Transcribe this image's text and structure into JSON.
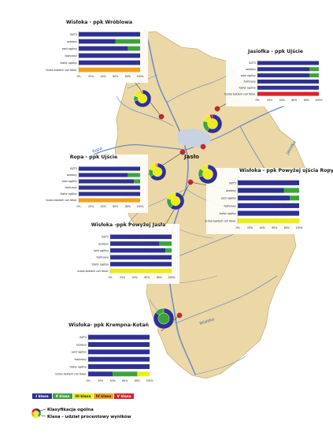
{
  "colors": {
    "class_I": "#2e3192",
    "class_II": "#3aa53a",
    "class_III": "#ecec1c",
    "class_IV": "#f2a21d",
    "class_V": "#d7242a",
    "land": "#ecd8a6",
    "river": "#6f8fc4",
    "reservoir": "#c8d2e2",
    "point": "#d7242a"
  },
  "town": "Jasło",
  "rivers": {
    "ropa": "Ropa",
    "jasiolka": "Jasiołka",
    "wisloka": "Wisłoka"
  },
  "parameter_labels": [
    "BZT5",
    "azotany",
    "azot ogólny",
    "fosforany",
    "fosfor ogólny",
    "liczba bakterii coli fekal."
  ],
  "axis_ticks": [
    "0%",
    "20%",
    "40%",
    "60%",
    "80%",
    "100%"
  ],
  "legend": {
    "classes": [
      "I klasa",
      "II klasa",
      "III klasa",
      "IV klasa",
      "V klasa"
    ],
    "overall_label": "Klasyfikacja ogólna",
    "share_label": "Klasa - udział procentowy wyników"
  },
  "stations": [
    {
      "title": "Wisłoka - ppk Wróblowa",
      "bars": [
        [
          100,
          0,
          0,
          0,
          0
        ],
        [
          60,
          40,
          0,
          0,
          0
        ],
        [
          80,
          20,
          0,
          0,
          0
        ],
        [
          100,
          0,
          0,
          0,
          0
        ],
        [
          100,
          0,
          0,
          0,
          0
        ],
        [
          0,
          0,
          0,
          100,
          0
        ]
      ],
      "ring": [
        70,
        10,
        15,
        5,
        0
      ],
      "core": "#ecec1c"
    },
    {
      "title": "Jasiołka - ppk Ujście",
      "bars": [
        [
          100,
          0,
          0,
          0,
          0
        ],
        [
          85,
          15,
          0,
          0,
          0
        ],
        [
          85,
          15,
          0,
          0,
          0
        ],
        [
          100,
          0,
          0,
          0,
          0
        ],
        [
          100,
          0,
          0,
          0,
          0
        ],
        [
          0,
          0,
          0,
          0,
          100
        ]
      ],
      "ring": [
        60,
        20,
        15,
        0,
        5
      ],
      "core": "#ecec1c"
    },
    {
      "title": "Ropa - ppk Ujście",
      "bars": [
        [
          100,
          0,
          0,
          0,
          0
        ],
        [
          80,
          20,
          0,
          0,
          0
        ],
        [
          90,
          10,
          0,
          0,
          0
        ],
        [
          100,
          0,
          0,
          0,
          0
        ],
        [
          100,
          0,
          0,
          0,
          0
        ],
        [
          0,
          0,
          0,
          100,
          0
        ]
      ],
      "ring": [
        65,
        15,
        15,
        5,
        0
      ],
      "core": "#ecec1c"
    },
    {
      "title": "Wisłoka - ppk Powyżej ujścia Ropy",
      "bars": [
        [
          100,
          0,
          0,
          0,
          0
        ],
        [
          75,
          25,
          0,
          0,
          0
        ],
        [
          85,
          15,
          0,
          0,
          0
        ],
        [
          100,
          0,
          0,
          0,
          0
        ],
        [
          100,
          0,
          0,
          0,
          0
        ],
        [
          0,
          0,
          100,
          0,
          0
        ]
      ],
      "ring": [
        70,
        15,
        15,
        0,
        0
      ],
      "core": "#ecec1c"
    },
    {
      "title": "Wisłoka -ppk Powyżej Jasła",
      "bars": [
        [
          100,
          0,
          0,
          0,
          0
        ],
        [
          80,
          20,
          0,
          0,
          0
        ],
        [
          90,
          10,
          0,
          0,
          0
        ],
        [
          100,
          0,
          0,
          0,
          0
        ],
        [
          100,
          0,
          0,
          0,
          0
        ],
        [
          0,
          0,
          100,
          0,
          0
        ]
      ],
      "ring": [
        60,
        20,
        20,
        0,
        0
      ],
      "core": "#ecec1c"
    },
    {
      "title": "Wisłoka- ppk Krempna-Kotań",
      "bars": [
        [
          100,
          0,
          0,
          0,
          0
        ],
        [
          100,
          0,
          0,
          0,
          0
        ],
        [
          100,
          0,
          0,
          0,
          0
        ],
        [
          100,
          0,
          0,
          0,
          0
        ],
        [
          100,
          0,
          0,
          0,
          0
        ],
        [
          40,
          40,
          20,
          0,
          0
        ]
      ],
      "ring": [
        85,
        15,
        0,
        0,
        0
      ],
      "core": "#3aa53a"
    }
  ]
}
